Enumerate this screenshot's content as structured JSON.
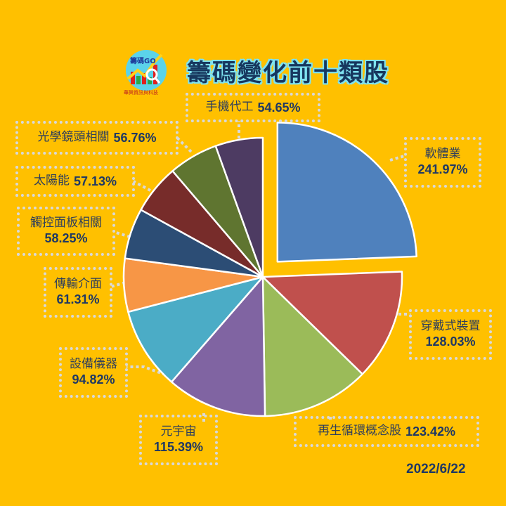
{
  "header": {
    "logo_text": "籌碼GO",
    "logo_subtext": "華興資訊與科技",
    "title": "籌碼變化前十類股"
  },
  "date": "2022/6/22",
  "colors": {
    "background": "#ffc000",
    "label_text": "#1f3864",
    "label_border": "#d9d9d9"
  },
  "chart_data": {
    "type": "pie",
    "title": "籌碼變化前十類股",
    "unit": "%",
    "start_angle_deg": 0,
    "direction": "clockwise",
    "exploded": [
      "軟體業"
    ],
    "categories": [
      "軟體業",
      "穿戴式裝置",
      "再生循環概念股",
      "元宇宙",
      "設備儀器",
      "傳輸介面",
      "觸控面板相關",
      "太陽能",
      "光學鏡頭相關",
      "手機代工"
    ],
    "values": [
      241.97,
      128.03,
      123.42,
      115.39,
      94.82,
      61.31,
      58.25,
      57.13,
      56.76,
      54.65
    ],
    "labels": [
      "241.97%",
      "128.03%",
      "123.42%",
      "115.39%",
      "94.82%",
      "61.31%",
      "58.25%",
      "57.13%",
      "56.76%",
      "54.65%"
    ],
    "colors": [
      "#4f81bd",
      "#c0504d",
      "#9bbb59",
      "#8064a2",
      "#4bacc6",
      "#f79646",
      "#2c4d75",
      "#772c2a",
      "#5f7530",
      "#4d3b62"
    ],
    "date": "2022/6/22"
  },
  "labels": [
    {
      "name": "軟體業",
      "value": "241.97%"
    },
    {
      "name": "穿戴式裝置",
      "value": "128.03%"
    },
    {
      "name": "再生循環概念股",
      "value": "123.42%"
    },
    {
      "name": "元宇宙",
      "value": "115.39%"
    },
    {
      "name": "設備儀器",
      "value": "94.82%"
    },
    {
      "name": "傳輸介面",
      "value": "61.31%"
    },
    {
      "name": "觸控面板相關",
      "value": "58.25%"
    },
    {
      "name": "太陽能",
      "value": "57.13%"
    },
    {
      "name": "光學鏡頭相關",
      "value": "56.76%"
    },
    {
      "name": "手機代工",
      "value": "54.65%"
    }
  ]
}
